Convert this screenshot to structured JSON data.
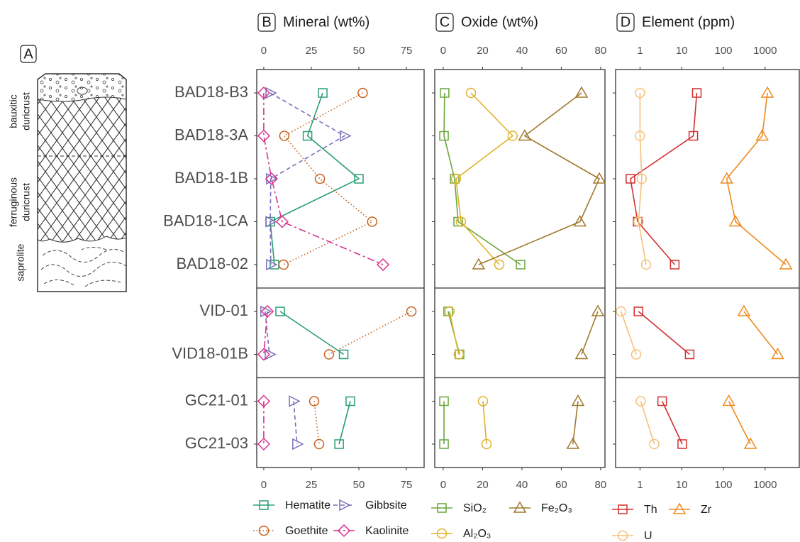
{
  "panel_a": {
    "label": "A",
    "zones": [
      [
        "bauxitic",
        "duricrust"
      ],
      [
        "ferruginous",
        "duricrust"
      ],
      [
        "saprolite"
      ]
    ]
  },
  "categories": [
    "BAD18-B3",
    "BAD18-3A",
    "BAD18-1B",
    "BAD18-1CA",
    "BAD18-02",
    "VID-01",
    "VID18-01B",
    "GC21-01",
    "GC21-03"
  ],
  "groups": [
    5,
    2,
    2
  ],
  "chart_data": [
    {
      "type": "line",
      "panel": "B",
      "title": "Mineral (wt%)",
      "log": false,
      "xlim": [
        -3.7,
        84.3
      ],
      "xticks": [
        0,
        25,
        50,
        75
      ],
      "series": [
        {
          "name": "Hematite",
          "color": "#2a9d74",
          "marker": "square",
          "dash": "solid",
          "values": [
            31,
            23,
            50,
            3.4,
            5.6,
            8.6,
            42,
            45.5,
            39.6
          ]
        },
        {
          "name": "Goethite",
          "color": "#c8601e",
          "marker": "circle",
          "dash": "dotted",
          "values": [
            52,
            10.8,
            29.5,
            57,
            10.4,
            77.6,
            34.3,
            26.5,
            29.1
          ]
        },
        {
          "name": "Gibbsite",
          "color": "#7b6fb8",
          "marker": "triangle-right",
          "dash": "dashed",
          "values": [
            3.4,
            42.5,
            3.7,
            3.4,
            3.7,
            0.7,
            3,
            15.7,
            17.5
          ]
        },
        {
          "name": "Kaolinite",
          "color": "#d6328f",
          "marker": "diamond",
          "dash": "longdash",
          "values": [
            0,
            0,
            4.1,
            9.7,
            62.7,
            1.9,
            0,
            0,
            0
          ]
        }
      ]
    },
    {
      "type": "line",
      "panel": "C",
      "title": "Oxide (wt%)",
      "log": false,
      "xlim": [
        -4.3,
        82.2
      ],
      "xticks": [
        0,
        20,
        40,
        60,
        80
      ],
      "series": [
        {
          "name": "SiO₂",
          "color": "#6aa63a",
          "marker": "square",
          "dash": "solid",
          "values": [
            0.7,
            0.4,
            5.8,
            7.6,
            39.3,
            2.5,
            8.3,
            0.4,
            0.4
          ]
        },
        {
          "name": "Al₂O₃",
          "color": "#e0b22a",
          "marker": "circle",
          "dash": "solid",
          "values": [
            14.1,
            35.3,
            6.5,
            9,
            28.5,
            3.2,
            7.9,
            20.2,
            22
          ]
        },
        {
          "name": "Fe₂O₃",
          "color": "#a0782c",
          "marker": "triangle",
          "dash": "solid",
          "values": [
            70.3,
            41.4,
            79.3,
            69.5,
            18,
            78.6,
            70.3,
            68.5,
            65.9
          ]
        }
      ]
    },
    {
      "type": "line",
      "panel": "D",
      "title": "Element (ppm)",
      "log": true,
      "xlim": [
        0.26,
        6600
      ],
      "xticks": [
        1,
        10,
        100,
        1000
      ],
      "series": [
        {
          "name": "Th",
          "color": "#d32f2f",
          "marker": "square",
          "dash": "solid",
          "values": [
            23,
            19,
            0.59,
            0.88,
            6.8,
            0.92,
            15.5,
            3.4,
            10.3
          ]
        },
        {
          "name": "U",
          "color": "#f5c07a",
          "marker": "circle",
          "dash": "solid",
          "values": [
            1,
            1,
            1.1,
            0.92,
            1.4,
            0.35,
            0.81,
            1.04,
            2.2
          ]
        },
        {
          "name": "Zr",
          "color": "#ef8a1f",
          "marker": "triangle",
          "dash": "solid",
          "values": [
            1135,
            850,
            120,
            195,
            3150,
            310,
            2000,
            135,
            445
          ]
        }
      ]
    }
  ]
}
